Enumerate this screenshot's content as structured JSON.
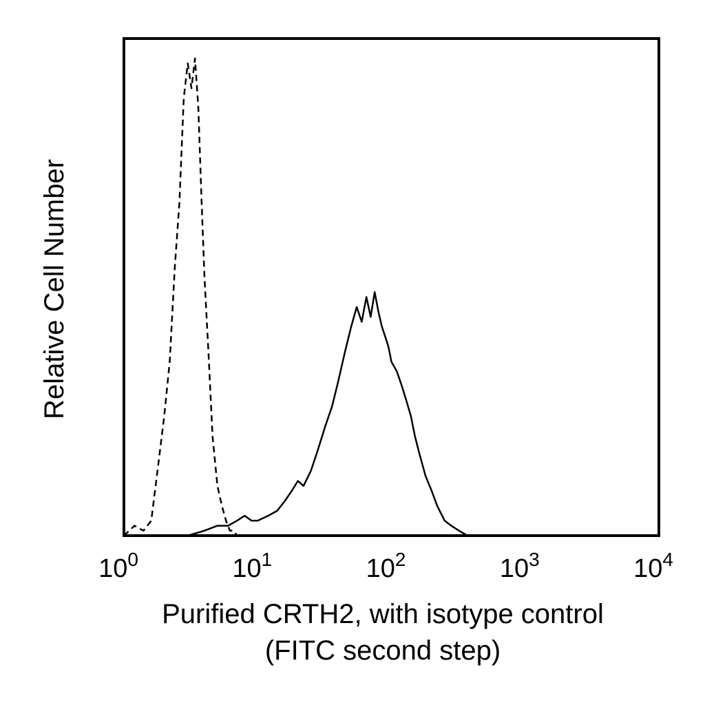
{
  "chart_data": {
    "type": "line",
    "xlabel": "Purified CRTH2, with isotype control",
    "xlabel_line2": "(FITC second step)",
    "ylabel": "Relative Cell Number",
    "xscale": "log",
    "xlim": [
      1,
      10000
    ],
    "ylim": [
      0,
      100
    ],
    "grid": false,
    "x_ticks": [
      {
        "value": 1,
        "base": "10",
        "exp": "0"
      },
      {
        "value": 10,
        "base": "10",
        "exp": "1"
      },
      {
        "value": 100,
        "base": "10",
        "exp": "2"
      },
      {
        "value": 1000,
        "base": "10",
        "exp": "3"
      },
      {
        "value": 10000,
        "base": "10",
        "exp": "4"
      }
    ],
    "series": [
      {
        "style": "dashed",
        "color": "#000000",
        "x": [
          1.0,
          1.2,
          1.4,
          1.6,
          1.8,
          2.0,
          2.2,
          2.4,
          2.6,
          2.8,
          3.0,
          3.2,
          3.4,
          3.6,
          3.8,
          4.0,
          4.3,
          4.6,
          5.0,
          5.4,
          5.8,
          6.2,
          6.6,
          7.0
        ],
        "y": [
          0,
          2,
          1,
          3,
          14,
          24,
          35,
          54,
          67,
          88,
          95,
          90,
          96,
          86,
          68,
          52,
          36,
          20,
          10,
          6,
          3,
          1,
          1,
          0
        ]
      },
      {
        "style": "solid",
        "color": "#000000",
        "x": [
          3,
          4,
          5,
          6,
          7,
          8,
          9,
          10,
          12,
          14,
          16,
          18,
          20,
          22,
          25,
          28,
          32,
          36,
          40,
          45,
          50,
          55,
          60,
          65,
          70,
          75,
          80,
          85,
          90,
          95,
          100,
          110,
          120,
          130,
          140,
          150,
          160,
          180,
          200,
          220,
          250,
          280,
          320,
          370
        ],
        "y": [
          0,
          1,
          2,
          2,
          3,
          4,
          3,
          3,
          4,
          5,
          7,
          9,
          11,
          10,
          13,
          17,
          22,
          26,
          31,
          37,
          42,
          46,
          43,
          48,
          44,
          49,
          45,
          42,
          40,
          38,
          35,
          33,
          30,
          27,
          24,
          20,
          17,
          12,
          9,
          6,
          3,
          2,
          1,
          0
        ]
      }
    ]
  }
}
